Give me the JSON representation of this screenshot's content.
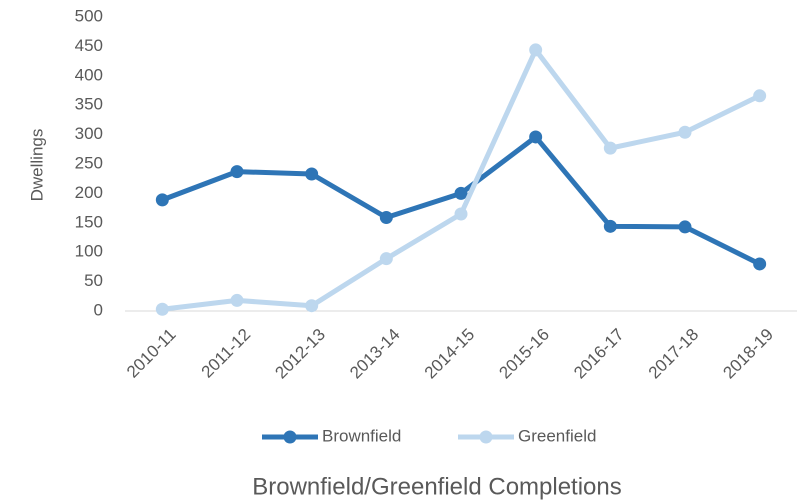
{
  "chart_data": {
    "type": "line",
    "title": "Brownfield/Greenfield Completions",
    "y_label": "Dwellings",
    "categories": [
      "2010-11",
      "2011-12",
      "2012-13",
      "2013-14",
      "2014-15",
      "2015-16",
      "2016-17",
      "2017-18",
      "2018-19"
    ],
    "series": [
      {
        "name": "Brownfield",
        "color": "#2e75b6",
        "values": [
          189,
          237,
          233,
          159,
          200,
          296,
          144,
          143,
          80
        ]
      },
      {
        "name": "Greenfield",
        "color": "#bdd7ee",
        "values": [
          3,
          18,
          9,
          89,
          165,
          444,
          277,
          304,
          366
        ]
      }
    ],
    "ylim": [
      0,
      500
    ],
    "yticks": [
      0,
      50,
      100,
      150,
      200,
      250,
      300,
      350,
      400,
      450,
      500
    ],
    "grid": false,
    "legend": "bottom"
  }
}
